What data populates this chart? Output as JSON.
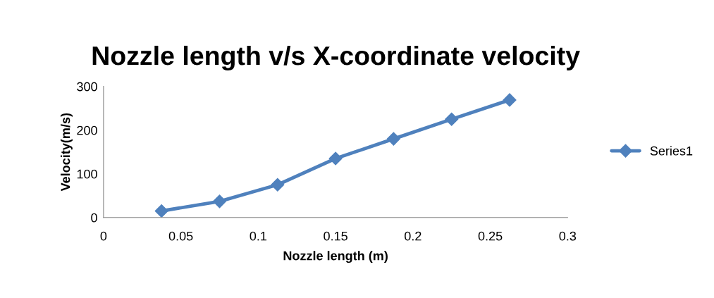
{
  "chart_data": {
    "type": "line",
    "title": "Nozzle length v/s X-coordinate velocity",
    "xlabel": "Nozzle length (m)",
    "ylabel": "Velocity(m/s)",
    "x": [
      0.0375,
      0.075,
      0.1125,
      0.15,
      0.1875,
      0.225,
      0.2625
    ],
    "series": [
      {
        "name": "Series1",
        "color": "#4f81bd",
        "values": [
          15,
          37,
          75,
          135,
          180,
          225,
          269
        ]
      }
    ],
    "xlim": [
      0,
      0.3
    ],
    "xticks": [
      0,
      0.05,
      0.1,
      0.15,
      0.2,
      0.25,
      0.3
    ],
    "ylim": [
      0,
      300
    ],
    "yticks": [
      0,
      100,
      200,
      300
    ],
    "marker": "diamond",
    "line_style": "solid",
    "legend": "right",
    "grid": false
  }
}
